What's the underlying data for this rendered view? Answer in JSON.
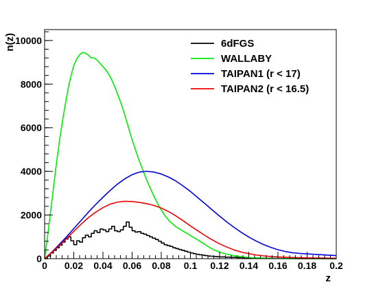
{
  "chart_data": {
    "type": "line",
    "title": "",
    "xlabel": "z",
    "ylabel": "n(z)",
    "xlim": [
      0,
      0.2
    ],
    "ylim": [
      0,
      10500
    ],
    "grid": false,
    "legend_position": "top-right",
    "x_ticks": [
      0,
      0.02,
      0.04,
      0.06,
      0.08,
      0.1,
      0.12,
      0.14,
      0.16,
      0.18,
      0.2
    ],
    "x_tick_labels": [
      "0",
      "0.02",
      "0.04",
      "0.06",
      "0.08",
      "0.1",
      "0.12",
      "0.14",
      "0.16",
      "0.18",
      "0.2"
    ],
    "y_ticks": [
      0,
      2000,
      4000,
      6000,
      8000,
      10000
    ],
    "y_tick_labels": [
      "0",
      "2000",
      "4000",
      "6000",
      "8000",
      "10000"
    ],
    "series": [
      {
        "name": "6dFGS",
        "color": "#000000",
        "style": "step",
        "x": [
          0,
          0.002,
          0.004,
          0.006,
          0.008,
          0.01,
          0.012,
          0.014,
          0.016,
          0.018,
          0.02,
          0.022,
          0.024,
          0.026,
          0.028,
          0.03,
          0.032,
          0.034,
          0.036,
          0.038,
          0.04,
          0.042,
          0.044,
          0.046,
          0.048,
          0.05,
          0.052,
          0.054,
          0.056,
          0.058,
          0.06,
          0.062,
          0.064,
          0.066,
          0.068,
          0.07,
          0.072,
          0.074,
          0.076,
          0.078,
          0.08,
          0.082,
          0.084,
          0.086,
          0.088,
          0.09,
          0.092,
          0.094,
          0.096,
          0.098,
          0.1,
          0.102,
          0.104,
          0.106,
          0.108,
          0.11,
          0.112,
          0.114,
          0.116,
          0.118,
          0.12,
          0.124,
          0.128,
          0.132,
          0.136,
          0.14,
          0.144,
          0.148,
          0.152,
          0.156,
          0.16,
          0.166,
          0.172,
          0.178,
          0.184,
          0.19,
          0.196,
          0.2
        ],
        "values": [
          0,
          120,
          260,
          380,
          500,
          620,
          760,
          900,
          1000,
          820,
          640,
          820,
          760,
          960,
          1080,
          1000,
          1160,
          1280,
          1200,
          1360,
          1320,
          1240,
          1360,
          1480,
          1280,
          1240,
          1320,
          1480,
          1680,
          1440,
          1280,
          1220,
          1240,
          1160,
          1120,
          1060,
          1000,
          940,
          880,
          800,
          720,
          640,
          600,
          560,
          500,
          460,
          420,
          380,
          340,
          300,
          260,
          230,
          200,
          180,
          160,
          140,
          120,
          110,
          100,
          90,
          80,
          70,
          60,
          50,
          40,
          35,
          30,
          25,
          20,
          15,
          10,
          8,
          6,
          5,
          4,
          3,
          2,
          0
        ]
      },
      {
        "name": "WALLABY",
        "color": "#00ee00",
        "style": "line",
        "x": [
          0,
          0.002,
          0.004,
          0.006,
          0.008,
          0.01,
          0.012,
          0.014,
          0.016,
          0.018,
          0.02,
          0.022,
          0.024,
          0.026,
          0.028,
          0.03,
          0.032,
          0.034,
          0.036,
          0.038,
          0.04,
          0.042,
          0.044,
          0.046,
          0.048,
          0.05,
          0.052,
          0.054,
          0.056,
          0.058,
          0.06,
          0.062,
          0.064,
          0.066,
          0.068,
          0.07,
          0.072,
          0.074,
          0.076,
          0.078,
          0.08,
          0.082,
          0.084,
          0.086,
          0.088,
          0.09,
          0.092,
          0.094,
          0.096,
          0.098,
          0.1,
          0.102,
          0.104,
          0.106,
          0.108,
          0.11,
          0.112,
          0.114,
          0.116,
          0.118,
          0.12,
          0.124,
          0.128,
          0.132,
          0.136,
          0.14,
          0.144,
          0.148,
          0.152,
          0.156,
          0.16,
          0.166,
          0.172,
          0.178,
          0.184,
          0.19,
          0.196,
          0.2
        ],
        "values": [
          0,
          1000,
          2100,
          3200,
          4300,
          5300,
          6200,
          7000,
          7750,
          8350,
          8850,
          9150,
          9350,
          9450,
          9420,
          9330,
          9200,
          9200,
          9100,
          8950,
          8800,
          8650,
          8450,
          8200,
          7900,
          7550,
          7200,
          6800,
          6350,
          5900,
          5450,
          5050,
          4650,
          4300,
          3950,
          3600,
          3300,
          3000,
          2720,
          2460,
          2240,
          2020,
          1850,
          1700,
          1580,
          1460,
          1380,
          1300,
          1220,
          1140,
          1060,
          980,
          900,
          820,
          730,
          650,
          560,
          480,
          410,
          350,
          300,
          220,
          160,
          115,
          80,
          55,
          38,
          26,
          18,
          12,
          8,
          5,
          3,
          2,
          1,
          1,
          0,
          0
        ]
      },
      {
        "name": "TAIPAN1 (r < 17)",
        "color": "#0000dd",
        "style": "line",
        "x": [
          0,
          0.005,
          0.01,
          0.015,
          0.02,
          0.025,
          0.03,
          0.035,
          0.04,
          0.045,
          0.05,
          0.055,
          0.06,
          0.065,
          0.07,
          0.075,
          0.08,
          0.085,
          0.09,
          0.095,
          0.1,
          0.105,
          0.11,
          0.115,
          0.12,
          0.125,
          0.13,
          0.135,
          0.14,
          0.145,
          0.15,
          0.155,
          0.16,
          0.165,
          0.17,
          0.175,
          0.18,
          0.185,
          0.19,
          0.195,
          0.2
        ],
        "values": [
          0,
          300,
          650,
          1000,
          1380,
          1750,
          2130,
          2480,
          2810,
          3130,
          3420,
          3660,
          3850,
          3970,
          4000,
          3970,
          3880,
          3740,
          3560,
          3330,
          3080,
          2800,
          2520,
          2230,
          1950,
          1680,
          1430,
          1200,
          990,
          810,
          650,
          520,
          410,
          330,
          270,
          240,
          220,
          200,
          180,
          160,
          140
        ]
      },
      {
        "name": "TAIPAN2 (r < 16.5)",
        "color": "#ee0000",
        "style": "line",
        "x": [
          0,
          0.005,
          0.01,
          0.015,
          0.02,
          0.025,
          0.03,
          0.035,
          0.04,
          0.045,
          0.05,
          0.055,
          0.06,
          0.065,
          0.07,
          0.075,
          0.08,
          0.085,
          0.09,
          0.095,
          0.1,
          0.105,
          0.11,
          0.115,
          0.12,
          0.125,
          0.13,
          0.135,
          0.14,
          0.145,
          0.15,
          0.155,
          0.16,
          0.165,
          0.17,
          0.175,
          0.18,
          0.185,
          0.19,
          0.195,
          0.2
        ],
        "values": [
          0,
          290,
          600,
          920,
          1250,
          1580,
          1880,
          2130,
          2340,
          2500,
          2590,
          2630,
          2620,
          2580,
          2520,
          2440,
          2320,
          2160,
          1960,
          1740,
          1500,
          1280,
          1060,
          860,
          680,
          530,
          400,
          300,
          230,
          170,
          130,
          100,
          80,
          65,
          55,
          45,
          38,
          32,
          28,
          24,
          20
        ]
      }
    ]
  }
}
